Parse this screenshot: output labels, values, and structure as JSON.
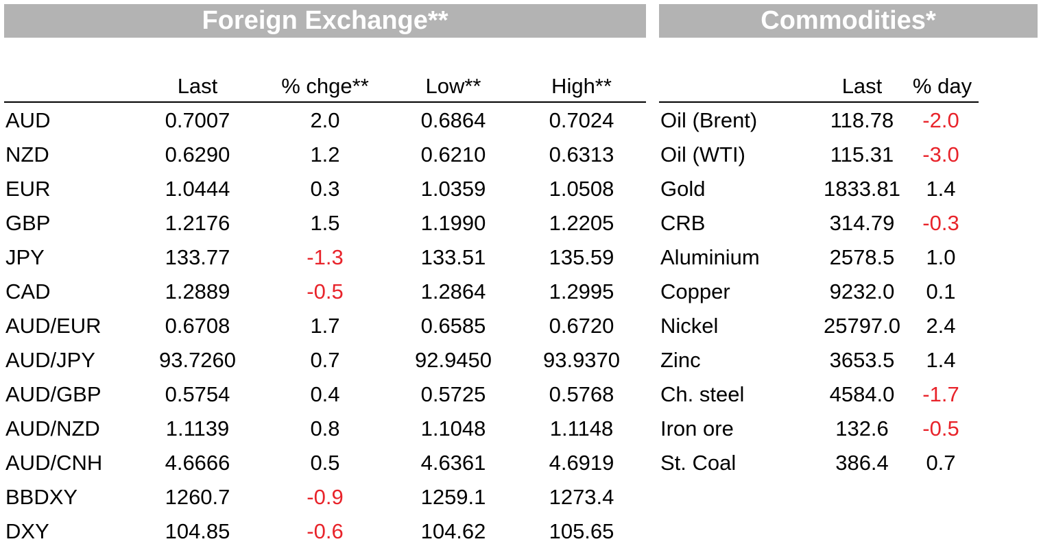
{
  "fx": {
    "title": "Foreign Exchange**",
    "headers": [
      "Last",
      "% chge**",
      "Low**",
      "High**"
    ],
    "rows": [
      {
        "name": "AUD",
        "last": "0.7007",
        "chge": "2.0",
        "low": "0.6864",
        "high": "0.7024"
      },
      {
        "name": "NZD",
        "last": "0.6290",
        "chge": "1.2",
        "low": "0.6210",
        "high": "0.6313"
      },
      {
        "name": "EUR",
        "last": "1.0444",
        "chge": "0.3",
        "low": "1.0359",
        "high": "1.0508"
      },
      {
        "name": "GBP",
        "last": "1.2176",
        "chge": "1.5",
        "low": "1.1990",
        "high": "1.2205"
      },
      {
        "name": "JPY",
        "last": "133.77",
        "chge": "-1.3",
        "low": "133.51",
        "high": "135.59"
      },
      {
        "name": "CAD",
        "last": "1.2889",
        "chge": "-0.5",
        "low": "1.2864",
        "high": "1.2995"
      },
      {
        "name": "AUD/EUR",
        "last": "0.6708",
        "chge": "1.7",
        "low": "0.6585",
        "high": "0.6720"
      },
      {
        "name": "AUD/JPY",
        "last": "93.7260",
        "chge": "0.7",
        "low": "92.9450",
        "high": "93.9370"
      },
      {
        "name": "AUD/GBP",
        "last": "0.5754",
        "chge": "0.4",
        "low": "0.5725",
        "high": "0.5768"
      },
      {
        "name": "AUD/NZD",
        "last": "1.1139",
        "chge": "0.8",
        "low": "1.1048",
        "high": "1.1148"
      },
      {
        "name": "AUD/CNH",
        "last": "4.6666",
        "chge": "0.5",
        "low": "4.6361",
        "high": "4.6919"
      },
      {
        "name": "BBDXY",
        "last": "1260.7",
        "chge": "-0.9",
        "low": "1259.1",
        "high": "1273.4"
      },
      {
        "name": "DXY",
        "last": "104.85",
        "chge": "-0.6",
        "low": "104.62",
        "high": "105.65"
      }
    ]
  },
  "commodities": {
    "title": "Commodities*",
    "headers": [
      "Last",
      "% day"
    ],
    "rows": [
      {
        "name": "Oil (Brent)",
        "last": "118.78",
        "day": "-2.0"
      },
      {
        "name": "Oil (WTI)",
        "last": "115.31",
        "day": "-3.0"
      },
      {
        "name": "Gold",
        "last": "1833.81",
        "day": "1.4"
      },
      {
        "name": "CRB",
        "last": "314.79",
        "day": "-0.3"
      },
      {
        "name": "Aluminium",
        "last": "2578.5",
        "day": "1.0"
      },
      {
        "name": "Copper",
        "last": "9232.0",
        "day": "0.1"
      },
      {
        "name": "Nickel",
        "last": "25797.0",
        "day": "2.4"
      },
      {
        "name": "Zinc",
        "last": "3653.5",
        "day": "1.4"
      },
      {
        "name": "Ch. steel",
        "last": "4584.0",
        "day": "-1.7"
      },
      {
        "name": "Iron ore",
        "last": "132.6",
        "day": "-0.5"
      },
      {
        "name": "St. Coal",
        "last": "386.4",
        "day": "0.7"
      }
    ]
  },
  "colors": {
    "banner": "#b3b3b3",
    "negative": "#e8232a"
  }
}
